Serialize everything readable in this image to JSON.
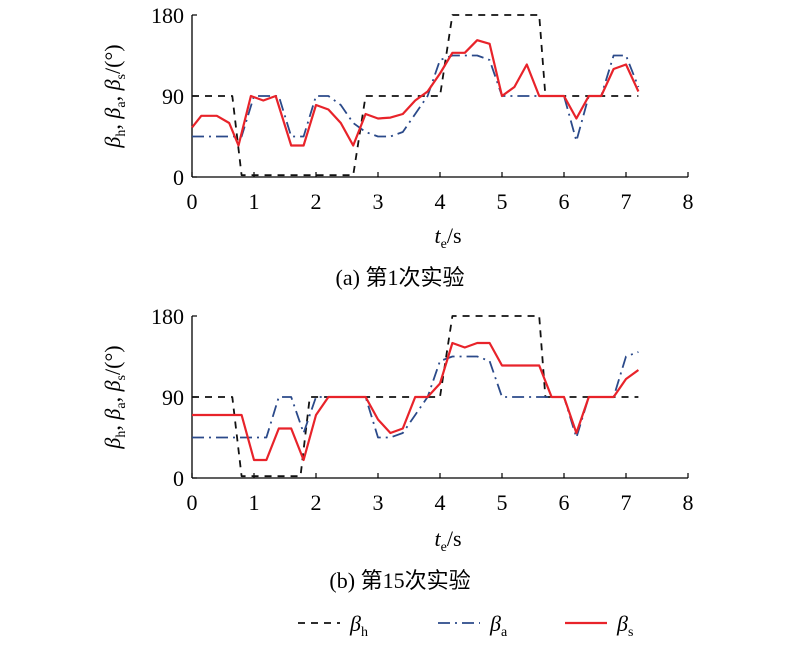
{
  "figure": {
    "legend": [
      {
        "key": "h",
        "symbol": "β",
        "sub": "h",
        "color": "#111111",
        "style": "dash"
      },
      {
        "key": "a",
        "symbol": "β",
        "sub": "a",
        "color": "#2b4a8a",
        "style": "dashdot"
      },
      {
        "key": "s",
        "symbol": "β",
        "sub": "s",
        "color": "#e8232a",
        "style": "solid"
      }
    ]
  },
  "chart_data": [
    {
      "type": "line",
      "caption": "(a) 第1次实验",
      "xlabel": {
        "main": "t",
        "sub": "e",
        "unit": "/s"
      },
      "ylabel": {
        "text": "βh, βa, βs/(°)",
        "parts": [
          [
            "β",
            "h",
            ", "
          ],
          [
            "β",
            "a",
            ", "
          ],
          [
            "β",
            "s",
            "/(°)"
          ]
        ]
      },
      "xlim": [
        0,
        8
      ],
      "ylim": [
        0,
        180
      ],
      "xticks": [
        "0",
        "1",
        "2",
        "3",
        "4",
        "5",
        "6",
        "7",
        "8"
      ],
      "yticks": [
        "0",
        "90",
        "180"
      ],
      "series": [
        {
          "key": "h",
          "x": [
            0,
            0.65,
            0.8,
            1.0,
            1.5,
            2.0,
            2.6,
            2.8,
            3.2,
            3.6,
            4.0,
            4.2,
            5.0,
            5.6,
            5.7,
            6.0,
            6.5,
            7.2
          ],
          "y": [
            90,
            90,
            2,
            2,
            2,
            2,
            2,
            90,
            90,
            90,
            90,
            180,
            180,
            180,
            90,
            90,
            90,
            90
          ]
        },
        {
          "key": "a",
          "x": [
            0,
            0.6,
            0.8,
            1.0,
            1.2,
            1.4,
            1.6,
            1.8,
            2.0,
            2.2,
            2.4,
            2.6,
            2.8,
            3.0,
            3.2,
            3.4,
            3.6,
            3.8,
            4.0,
            4.2,
            4.4,
            4.6,
            4.8,
            5.0,
            5.2,
            5.4,
            5.6,
            5.8,
            6.0,
            6.2,
            6.4,
            6.6,
            6.8,
            7.0,
            7.2
          ],
          "y": [
            45,
            45,
            45,
            90,
            90,
            90,
            45,
            45,
            90,
            90,
            80,
            60,
            50,
            45,
            45,
            50,
            70,
            90,
            130,
            135,
            135,
            135,
            130,
            90,
            90,
            90,
            90,
            90,
            90,
            40,
            90,
            90,
            135,
            135,
            100
          ]
        },
        {
          "key": "s",
          "x": [
            0,
            0.15,
            0.4,
            0.6,
            0.75,
            0.95,
            1.15,
            1.35,
            1.6,
            1.8,
            2.0,
            2.2,
            2.4,
            2.6,
            2.8,
            3.0,
            3.2,
            3.4,
            3.6,
            3.8,
            4.0,
            4.2,
            4.4,
            4.6,
            4.8,
            5.0,
            5.2,
            5.4,
            5.6,
            5.8,
            6.0,
            6.2,
            6.4,
            6.6,
            6.8,
            7.0,
            7.2
          ],
          "y": [
            55,
            68,
            68,
            60,
            35,
            90,
            85,
            90,
            35,
            35,
            80,
            75,
            60,
            35,
            70,
            65,
            66,
            70,
            85,
            95,
            115,
            138,
            138,
            152,
            148,
            90,
            100,
            125,
            90,
            90,
            90,
            65,
            90,
            90,
            120,
            125,
            95
          ]
        }
      ]
    },
    {
      "type": "line",
      "caption": "(b) 第15次实验",
      "xlabel": {
        "main": "t",
        "sub": "e",
        "unit": "/s"
      },
      "ylabel": {
        "text": "βh, βa, βs/(°)",
        "parts": [
          [
            "β",
            "h",
            ", "
          ],
          [
            "β",
            "a",
            ", "
          ],
          [
            "β",
            "s",
            "/(°)"
          ]
        ]
      },
      "xlim": [
        0,
        8
      ],
      "ylim": [
        0,
        180
      ],
      "xticks": [
        "0",
        "1",
        "2",
        "3",
        "4",
        "5",
        "6",
        "7",
        "8"
      ],
      "yticks": [
        "0",
        "90",
        "180"
      ],
      "series": [
        {
          "key": "h",
          "x": [
            0,
            0.65,
            0.8,
            1.0,
            1.5,
            1.75,
            1.9,
            2.2,
            2.8,
            3.6,
            4.0,
            4.2,
            5.0,
            5.6,
            5.7,
            6.0,
            6.5,
            7.2
          ],
          "y": [
            90,
            90,
            2,
            2,
            2,
            2,
            90,
            90,
            90,
            90,
            90,
            180,
            180,
            180,
            90,
            90,
            90,
            90
          ]
        },
        {
          "key": "a",
          "x": [
            0,
            0.6,
            0.8,
            1.0,
            1.2,
            1.4,
            1.6,
            1.8,
            2.0,
            2.2,
            2.4,
            2.6,
            2.8,
            3.0,
            3.2,
            3.4,
            3.6,
            3.8,
            4.0,
            4.2,
            4.4,
            4.6,
            4.8,
            5.0,
            5.2,
            5.4,
            5.6,
            5.8,
            6.0,
            6.2,
            6.4,
            6.6,
            6.8,
            7.0,
            7.2
          ],
          "y": [
            45,
            45,
            45,
            45,
            45,
            90,
            90,
            50,
            90,
            90,
            90,
            90,
            90,
            45,
            45,
            50,
            70,
            90,
            130,
            135,
            135,
            135,
            130,
            90,
            90,
            90,
            90,
            90,
            90,
            45,
            90,
            90,
            90,
            135,
            140
          ]
        },
        {
          "key": "s",
          "x": [
            0,
            0.6,
            0.8,
            1.0,
            1.2,
            1.4,
            1.6,
            1.8,
            2.0,
            2.2,
            2.4,
            2.6,
            2.8,
            3.0,
            3.2,
            3.4,
            3.6,
            3.8,
            4.0,
            4.2,
            4.4,
            4.6,
            4.8,
            5.0,
            5.2,
            5.4,
            5.6,
            5.8,
            6.0,
            6.2,
            6.4,
            6.6,
            6.8,
            7.0,
            7.2
          ],
          "y": [
            70,
            70,
            70,
            20,
            20,
            55,
            55,
            20,
            70,
            90,
            90,
            90,
            90,
            65,
            50,
            55,
            90,
            90,
            105,
            150,
            145,
            150,
            150,
            125,
            125,
            125,
            125,
            90,
            90,
            50,
            90,
            90,
            90,
            110,
            120
          ]
        }
      ]
    }
  ]
}
